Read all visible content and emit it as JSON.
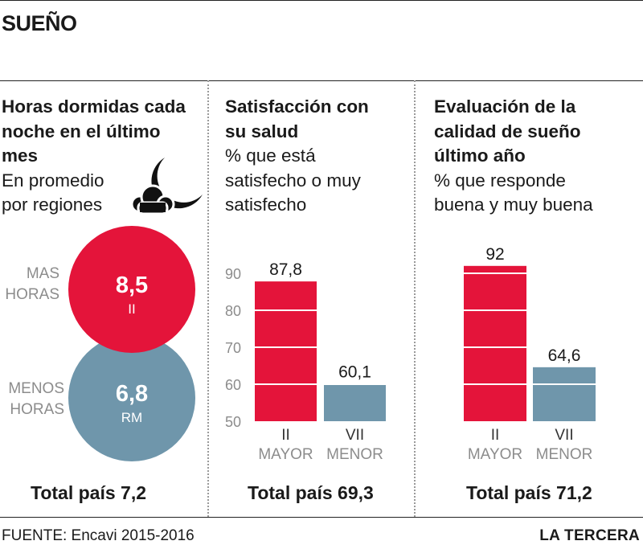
{
  "title": "SUEÑO",
  "colors": {
    "red": "#e4143a",
    "blue": "#6f96ab",
    "axis_label": "#8c8c8c"
  },
  "panel1": {
    "title_lines": [
      "Horas dormidas cada",
      "noche en el último",
      "mes"
    ],
    "subtitle_lines": [
      "En promedio",
      "por regiones"
    ],
    "icon": "moon-and-cloud-icon",
    "more_label_lines": [
      "MAS",
      "HORAS"
    ],
    "less_label_lines": [
      "MENOS",
      "HORAS"
    ],
    "more_value": "8,5",
    "more_region": "II",
    "less_value": "6,8",
    "less_region": "RM",
    "total": "Total país 7,2"
  },
  "panel2": {
    "title_lines": [
      "Satisfacción con",
      "su salud"
    ],
    "subtitle_lines": [
      "% que está",
      "satisfecho o muy",
      "satisfecho"
    ],
    "total": "Total país 69,3"
  },
  "panel3": {
    "title_lines": [
      "Evaluación de la",
      "calidad de sueño",
      "último año"
    ],
    "subtitle_lines": [
      "% que responde",
      "buena y muy buena"
    ],
    "total": "Total país 71,2"
  },
  "footer": {
    "source": "FUENTE: Encavi 2015-2016",
    "brand": "LA TERCERA"
  },
  "chart_data": [
    {
      "type": "bubble",
      "title": "Horas dormidas cada noche en el último mes",
      "categories": [
        "II",
        "RM"
      ],
      "labels": [
        "MAS HORAS",
        "MENOS HORAS"
      ],
      "values": [
        8.5,
        6.8
      ],
      "value_labels": [
        "8,5",
        "6,8"
      ],
      "total": 7.2
    },
    {
      "type": "bar",
      "title": "Satisfacción con su salud",
      "categories": [
        "II",
        "VII"
      ],
      "sublabels": [
        "MAYOR",
        "MENOR"
      ],
      "values": [
        87.8,
        60.1
      ],
      "value_labels": [
        "87,8",
        "60,1"
      ],
      "yticks": [
        50,
        60,
        70,
        80,
        90
      ],
      "ylim": [
        50,
        90
      ],
      "total": 69.3
    },
    {
      "type": "bar",
      "title": "Evaluación de la calidad de sueño último año",
      "categories": [
        "II",
        "VII"
      ],
      "sublabels": [
        "MAYOR",
        "MENOR"
      ],
      "values": [
        92,
        64.6
      ],
      "value_labels": [
        "92",
        "64,6"
      ],
      "ylim": [
        50,
        92
      ],
      "total": 71.2
    }
  ]
}
